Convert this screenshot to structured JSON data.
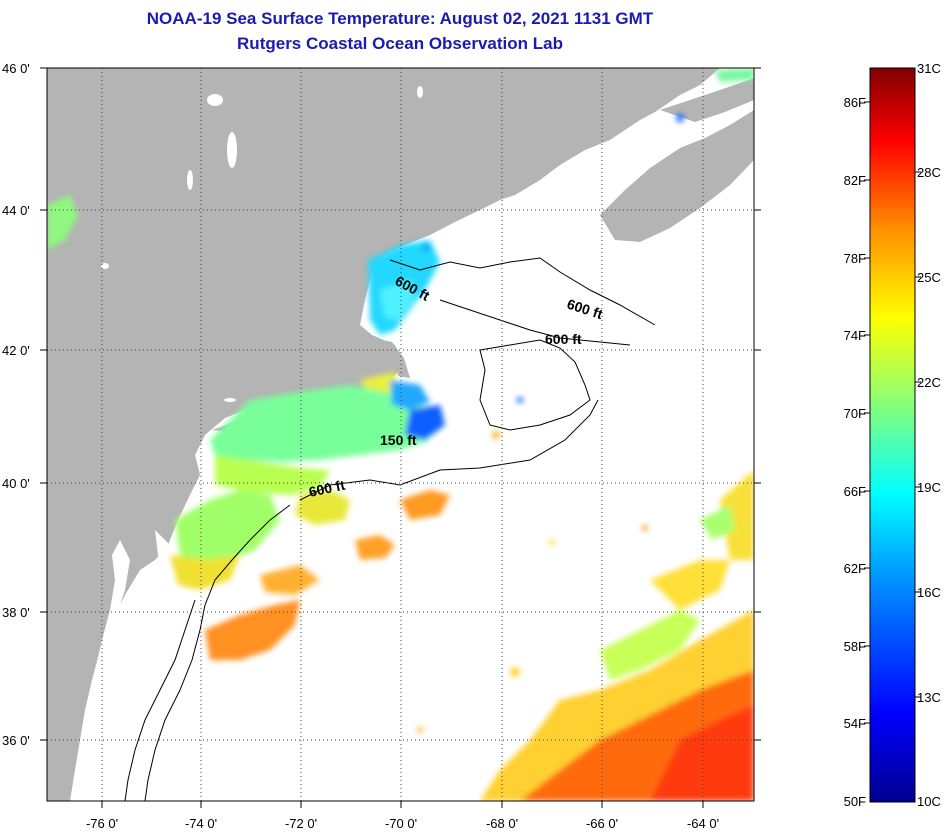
{
  "title": "NOAA-19 Sea Surface Temperature:  August 02, 2021 1131 GMT",
  "subtitle": "Rutgers Coastal Ocean Observation Lab",
  "latitude_labels": [
    "46 0'",
    "44 0'",
    "42 0'",
    "40 0'",
    "38 0'",
    "36 0'"
  ],
  "longitude_labels": [
    "-76 0'",
    "-74 0'",
    "-72 0'",
    "-70 0'",
    "-68 0'",
    "-66 0'",
    "-64 0'"
  ],
  "depth_labels": [
    {
      "text": "600 ft",
      "where": "Gulf of Maine western"
    },
    {
      "text": "600 ft",
      "where": "Gulf of Maine eastern"
    },
    {
      "text": "600 ft",
      "where": "Georges Bank north"
    },
    {
      "text": "150 ft",
      "where": "Nantucket Shoals"
    },
    {
      "text": "600 ft",
      "where": "Mid-Atlantic shelf break"
    }
  ],
  "colorbar": {
    "fahrenheit": [
      "86F",
      "82F",
      "78F",
      "74F",
      "70F",
      "66F",
      "62F",
      "58F",
      "54F",
      "50F"
    ],
    "celsius": [
      "31C",
      "28C",
      "25C",
      "22C",
      "19C",
      "16C",
      "13C",
      "10C"
    ],
    "range_c": [
      10,
      31
    ],
    "colors": [
      "#00008f",
      "#0000ff",
      "#0090ff",
      "#00ffff",
      "#90ff70",
      "#ffff00",
      "#ff9000",
      "#ff0000",
      "#800000"
    ]
  },
  "colors": {
    "land": "#b4b4b4",
    "cloud": "#ffffff",
    "title": "#1b1bb0"
  }
}
